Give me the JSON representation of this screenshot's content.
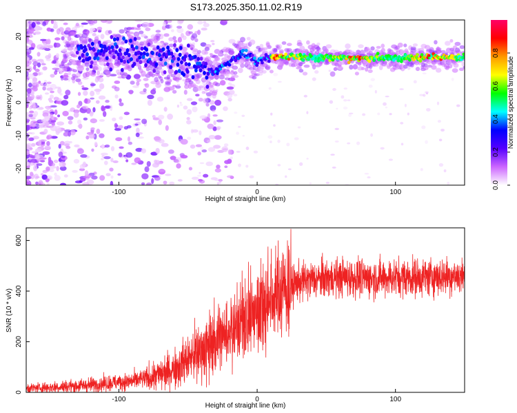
{
  "figure": {
    "title": "S173.2025.350.11.02.R19"
  },
  "chart_data": [
    {
      "type": "heatmap",
      "xlabel": "Height of straight line (km)",
      "ylabel": "Frequency (Hz)",
      "xlim": [
        -167,
        150
      ],
      "ylim": [
        -25,
        25
      ],
      "x_ticks": [
        -100,
        0,
        100
      ],
      "y_ticks": [
        -20,
        -10,
        0,
        10,
        20
      ],
      "colorbar": {
        "label": "Normalized spectral amplitude",
        "range": [
          0,
          1
        ],
        "ticks": [
          "0.0",
          "0.2",
          "0.4",
          "0.6",
          "0.8"
        ],
        "stops": [
          "#ffffff",
          "#cc66ff",
          "#5500ff",
          "#0000ff",
          "#00ffff",
          "#00ff00",
          "#ffff00",
          "#ff9900",
          "#ff0000",
          "#ff0066"
        ]
      },
      "ridge": {
        "description_free": true,
        "x": [
          -120,
          -100,
          -80,
          -60,
          -45,
          -38,
          -32,
          -25,
          -18,
          -10,
          -5,
          0,
          5,
          15,
          30,
          50,
          70,
          90,
          110,
          130,
          150
        ],
        "y": [
          15,
          15,
          14,
          13,
          12,
          10,
          9,
          11,
          13,
          15,
          14,
          12,
          13,
          14,
          14,
          13.5,
          13.5,
          13.5,
          13.5,
          14,
          13.5
        ]
      }
    },
    {
      "type": "line",
      "xlabel": "Height of straight line (km)",
      "ylabel": "SNR (10 * v/v)",
      "xlim": [
        -167,
        150
      ],
      "ylim": [
        0,
        650
      ],
      "x_ticks": [
        -100,
        0,
        100
      ],
      "y_ticks": [
        0,
        200,
        400,
        600
      ],
      "line_color": "#ee2222",
      "series": [
        {
          "x": [
            -167,
            -150,
            -130,
            -110,
            -90,
            -80,
            -70,
            -60,
            -50,
            -40,
            -30,
            -20,
            -10,
            0,
            5,
            10,
            15,
            20,
            30,
            40,
            50,
            60,
            80,
            100,
            120,
            140,
            150
          ],
          "values": [
            15,
            20,
            25,
            35,
            45,
            55,
            70,
            95,
            130,
            170,
            210,
            250,
            290,
            330,
            350,
            370,
            390,
            410,
            435,
            445,
            450,
            455,
            450,
            455,
            455,
            460,
            460
          ]
        }
      ]
    }
  ]
}
